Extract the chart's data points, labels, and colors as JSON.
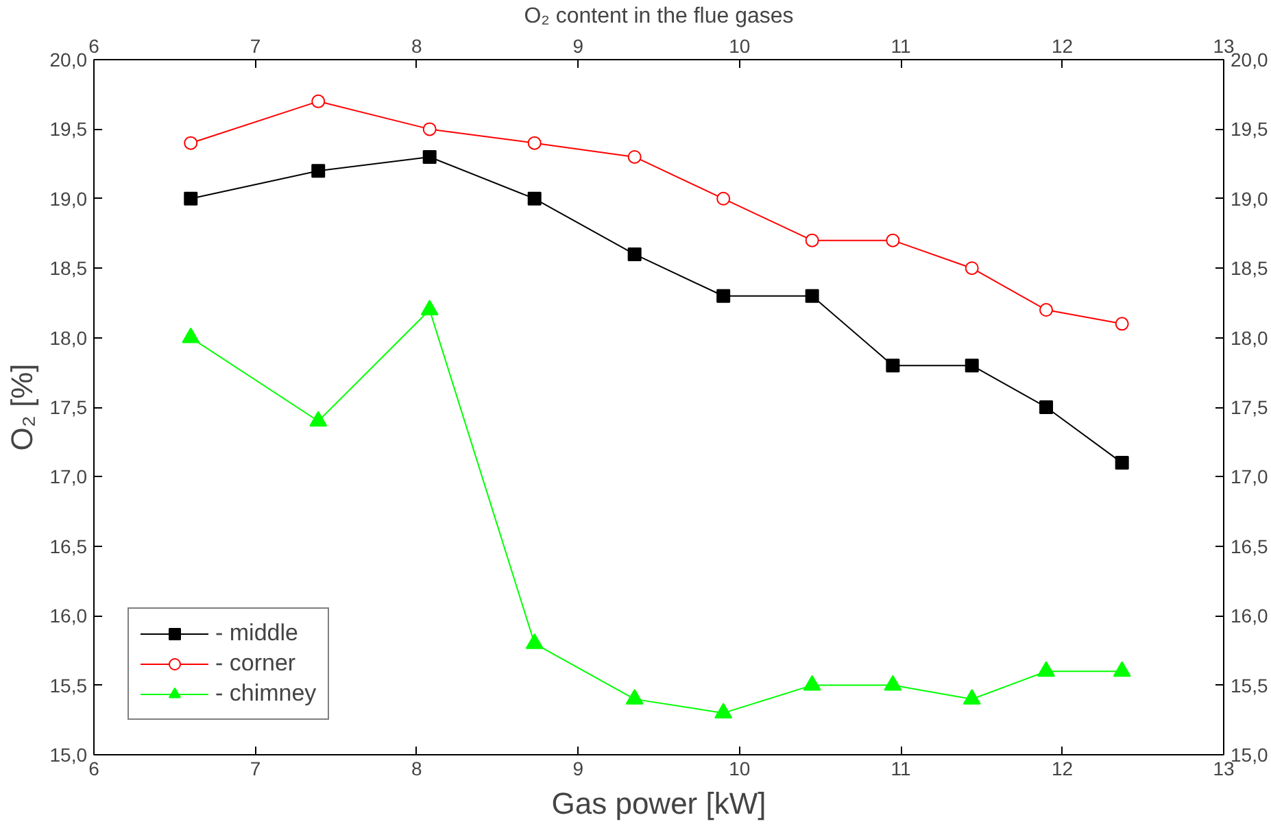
{
  "chart_data": {
    "type": "line",
    "xlabel": "Gas power [kW]",
    "ylabel": "O₂ [%]",
    "x2label": "O₂ content in the flue gases",
    "x": [
      6.6,
      7.39,
      8.08,
      8.73,
      9.35,
      9.9,
      10.45,
      10.95,
      11.44,
      11.9,
      12.37
    ],
    "series": [
      {
        "name": "- middle",
        "color": "#000000",
        "marker": "square",
        "values": [
          19.0,
          19.2,
          19.3,
          19.0,
          18.6,
          18.3,
          18.3,
          17.8,
          17.8,
          17.5,
          17.1
        ]
      },
      {
        "name": "- corner",
        "color": "#ff0000",
        "marker": "circle",
        "values": [
          19.4,
          19.7,
          19.5,
          19.4,
          19.3,
          19.0,
          18.7,
          18.7,
          18.5,
          18.2,
          18.1
        ]
      },
      {
        "name": "- chimney",
        "color": "#00ff00",
        "marker": "triangle",
        "values": [
          18.0,
          17.4,
          18.2,
          15.8,
          15.4,
          15.3,
          15.5,
          15.5,
          15.4,
          15.6,
          15.6
        ]
      }
    ],
    "xlim": [
      6,
      13
    ],
    "xticks": [
      6,
      7,
      8,
      9,
      10,
      11,
      12,
      13
    ],
    "x2lim": [
      6,
      13
    ],
    "x2ticks": [
      6,
      7,
      8,
      9,
      10,
      11,
      12,
      13
    ],
    "ylim": [
      15,
      20
    ],
    "yticks": [
      {
        "value": 15,
        "label": "15,0"
      },
      {
        "value": 15.5,
        "label": "15,5"
      },
      {
        "value": 16,
        "label": "16,0"
      },
      {
        "value": 16.5,
        "label": "16,5"
      },
      {
        "value": 17,
        "label": "17,0"
      },
      {
        "value": 17.5,
        "label": "17,5"
      },
      {
        "value": 18,
        "label": "18,0"
      },
      {
        "value": 18.5,
        "label": "18,5"
      },
      {
        "value": 19,
        "label": "19,0"
      },
      {
        "value": 19.5,
        "label": "19,5"
      },
      {
        "value": 20,
        "label": "20,0"
      }
    ],
    "y2lim": [
      15,
      20
    ],
    "y2ticks": [
      {
        "value": 15,
        "label": "15,0"
      },
      {
        "value": 15.5,
        "label": "15,5"
      },
      {
        "value": 16,
        "label": "16,0"
      },
      {
        "value": 16.5,
        "label": "16,5"
      },
      {
        "value": 17,
        "label": "17,0"
      },
      {
        "value": 17.5,
        "label": "17,5"
      },
      {
        "value": 18,
        "label": "18,0"
      },
      {
        "value": 18.5,
        "label": "18,5"
      },
      {
        "value": 19,
        "label": "19,0"
      },
      {
        "value": 19.5,
        "label": "19,5"
      },
      {
        "value": 20,
        "label": "20,0"
      }
    ],
    "grid": false,
    "legend": "bottom left",
    "line_style": "solid"
  }
}
